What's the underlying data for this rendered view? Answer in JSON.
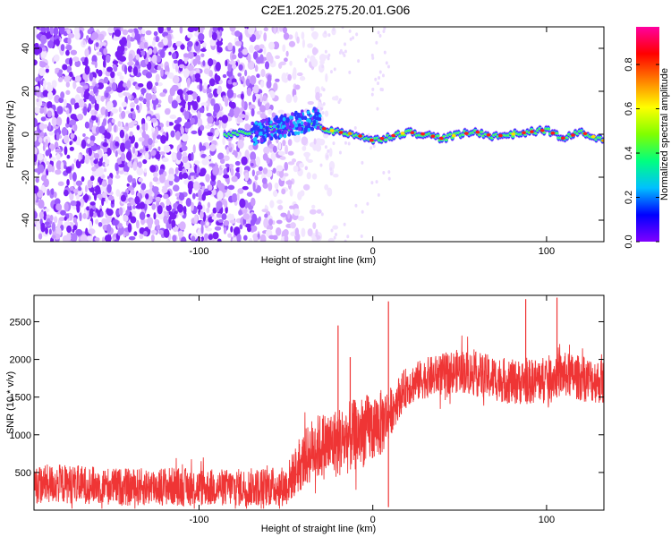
{
  "title": "C2E1.2025.275.20.01.G06",
  "chart_data": [
    {
      "type": "heatmap",
      "xlabel": "Height of straight line (km)",
      "ylabel": "Frequency (Hz)",
      "xlim": [
        -195,
        133
      ],
      "ylim": [
        -50,
        50
      ],
      "xticks": [
        -100,
        0,
        100
      ],
      "yticks": [
        -40,
        -20,
        0,
        20,
        40
      ],
      "colorbar": {
        "label": "Normalized spectral amplitude",
        "ticks": [
          0.0,
          0.2,
          0.4,
          0.6,
          0.8
        ],
        "range": [
          0,
          0.97
        ],
        "colors": [
          "#8000ff",
          "#0000ff",
          "#00c0ff",
          "#00ff80",
          "#80ff00",
          "#ffff00",
          "#ff8000",
          "#ff0000",
          "#ff00a0"
        ]
      },
      "noise_region_x": [
        -195,
        -30
      ],
      "signal_onset_x": -85,
      "signal_track": {
        "x": [
          -85,
          -70,
          -60,
          -50,
          -45,
          -40,
          -35,
          -30,
          -20,
          -10,
          0,
          10,
          20,
          30,
          40,
          50,
          60,
          70,
          80,
          90,
          100,
          110,
          120,
          133
        ],
        "y": [
          0,
          1,
          3,
          2,
          4,
          2,
          6,
          3,
          1,
          0,
          -3,
          -1,
          1,
          0,
          -2,
          0,
          1,
          -1,
          0,
          1,
          2,
          -2,
          1,
          -3
        ]
      }
    },
    {
      "type": "line",
      "xlabel": "Height of straight line (km)",
      "ylabel": "SNR (10 * v/v)",
      "xlim": [
        -195,
        133
      ],
      "ylim": [
        0,
        2850
      ],
      "xticks": [
        -100,
        0,
        100
      ],
      "yticks": [
        500,
        1000,
        1500,
        2000,
        2500
      ],
      "color": "#ef3535",
      "series": {
        "x": [
          -195,
          -180,
          -160,
          -140,
          -120,
          -100,
          -80,
          -60,
          -50,
          -45,
          -40,
          -35,
          -30,
          -25,
          -20,
          -15,
          -10,
          -5,
          0,
          5,
          10,
          15,
          20,
          30,
          40,
          50,
          60,
          70,
          80,
          90,
          100,
          110,
          120,
          133
        ],
        "mean": [
          340,
          350,
          330,
          300,
          320,
          300,
          300,
          310,
          320,
          500,
          650,
          800,
          850,
          870,
          900,
          950,
          1000,
          1050,
          1100,
          1150,
          1300,
          1500,
          1650,
          1750,
          1800,
          1850,
          1800,
          1750,
          1700,
          1700,
          1750,
          1800,
          1750,
          1700
        ],
        "spread": [
          260,
          260,
          250,
          250,
          260,
          250,
          250,
          260,
          270,
          330,
          380,
          420,
          450,
          460,
          470,
          480,
          480,
          480,
          470,
          450,
          330,
          280,
          270,
          270,
          280,
          290,
          300,
          300,
          300,
          300,
          300,
          300,
          300,
          300
        ]
      },
      "spikes": [
        {
          "x": -20,
          "y": 2450
        },
        {
          "x": 9,
          "y": 2770
        },
        {
          "x": 9,
          "y": 40
        },
        {
          "x": -13,
          "y": 2030
        },
        {
          "x": 88,
          "y": 2800
        },
        {
          "x": 106,
          "y": 2820
        }
      ]
    }
  ]
}
